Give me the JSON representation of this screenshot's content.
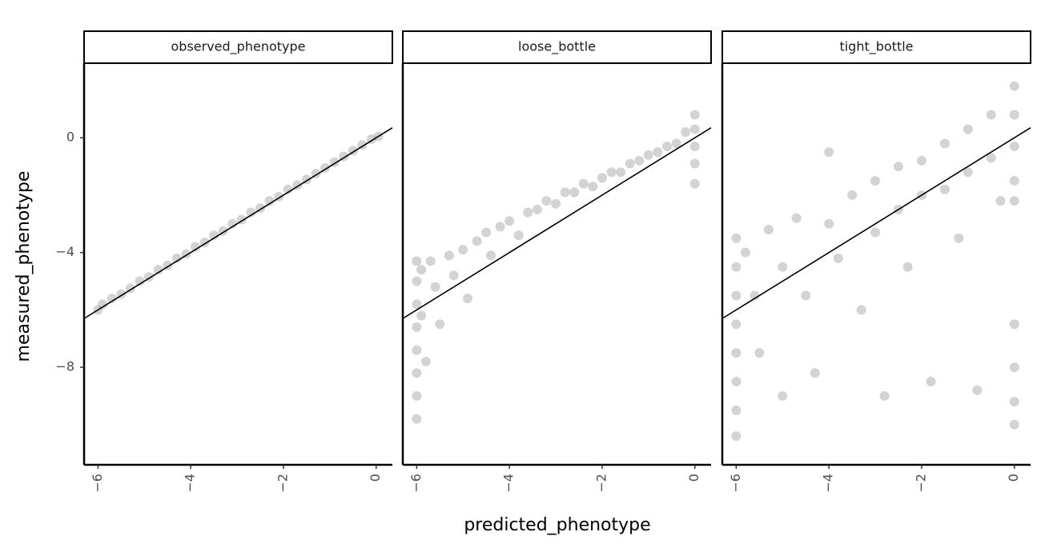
{
  "x_label": "predicted_phenotype",
  "y_label": "measured_phenotype",
  "chart_data": [
    {
      "type": "scatter",
      "title": "observed_phenotype",
      "color": "#808080",
      "abline": {
        "slope": 1,
        "intercept": 0
      },
      "x": [
        -6.0,
        -5.9,
        -5.7,
        -5.5,
        -5.3,
        -5.1,
        -4.9,
        -4.7,
        -4.5,
        -4.3,
        -4.1,
        -3.9,
        -3.7,
        -3.5,
        -3.3,
        -3.1,
        -2.9,
        -2.7,
        -2.5,
        -2.3,
        -2.1,
        -1.9,
        -1.7,
        -1.5,
        -1.3,
        -1.1,
        -0.9,
        -0.7,
        -0.5,
        -0.3,
        -0.1,
        0.05
      ],
      "y": [
        -6.0,
        -5.8,
        -5.6,
        -5.45,
        -5.25,
        -5.0,
        -4.85,
        -4.6,
        -4.45,
        -4.2,
        -4.05,
        -3.8,
        -3.65,
        -3.4,
        -3.25,
        -3.0,
        -2.85,
        -2.6,
        -2.45,
        -2.2,
        -2.05,
        -1.8,
        -1.65,
        -1.45,
        -1.25,
        -1.05,
        -0.85,
        -0.65,
        -0.45,
        -0.25,
        -0.05,
        0.05
      ],
      "xlim": [
        -6.3,
        0.35
      ],
      "ylim": [
        -11.4,
        2.6
      ],
      "xticks": [
        {
          "value": -6,
          "label": "−6"
        },
        {
          "value": -4,
          "label": "−4"
        },
        {
          "value": -2,
          "label": "−2"
        },
        0
      ],
      "yticks": [
        {
          "value": -8,
          "label": "−8"
        },
        {
          "value": -4,
          "label": "−4"
        },
        0
      ]
    },
    {
      "type": "scatter",
      "title": "loose_bottle",
      "color": "#808080",
      "abline": {
        "slope": 1,
        "intercept": 0
      },
      "x": [
        -6,
        -6,
        -6,
        -6,
        -6,
        -6,
        -6,
        -6,
        -5.9,
        -5.9,
        -5.8,
        -5.7,
        -5.6,
        -5.5,
        -5.3,
        -5.2,
        -5,
        -4.9,
        -4.7,
        -4.5,
        -4.4,
        -4.2,
        -4,
        -3.8,
        -3.6,
        -3.4,
        -3.2,
        -3,
        -2.8,
        -2.6,
        -2.4,
        -2.2,
        -2,
        -1.8,
        -1.6,
        -1.4,
        -1.2,
        -1,
        -0.8,
        -0.6,
        -0.4,
        -0.2,
        0,
        0,
        0,
        0,
        0
      ],
      "y": [
        -4.3,
        -5,
        -5.8,
        -6.6,
        -7.4,
        -8.2,
        -9,
        -9.8,
        -4.6,
        -6.2,
        -7.8,
        -4.3,
        -5.2,
        -6.5,
        -4.1,
        -4.8,
        -3.9,
        -5.6,
        -3.6,
        -3.3,
        -4.1,
        -3.1,
        -2.9,
        -3.4,
        -2.6,
        -2.5,
        -2.2,
        -2.3,
        -1.9,
        -1.9,
        -1.6,
        -1.7,
        -1.4,
        -1.2,
        -1.2,
        -0.9,
        -0.8,
        -0.6,
        -0.5,
        -0.3,
        -0.2,
        0.2,
        0.8,
        0.3,
        -0.3,
        -0.9,
        -1.6
      ],
      "xlim": [
        -6.3,
        0.35
      ],
      "ylim": [
        -11.4,
        2.6
      ],
      "xticks": [
        {
          "value": -6,
          "label": "−6"
        },
        {
          "value": -4,
          "label": "−4"
        },
        {
          "value": -2,
          "label": "−2"
        },
        0
      ]
    },
    {
      "type": "scatter",
      "title": "tight_bottle",
      "color": "#808080",
      "abline": {
        "slope": 1,
        "intercept": 0
      },
      "x": [
        -6,
        -6,
        -6,
        -6,
        -6,
        -6,
        -6,
        -6,
        -5.8,
        -5.6,
        -5.5,
        -5.3,
        -5,
        -5,
        -4.7,
        -4.5,
        -4.3,
        -4,
        -4,
        -3.8,
        -3.5,
        -3.3,
        -3,
        -3,
        -2.8,
        -2.5,
        -2.5,
        -2.3,
        -2,
        -2,
        -1.8,
        -1.5,
        -1.5,
        -1.2,
        -1,
        -1,
        -0.8,
        -0.5,
        -0.5,
        -0.3,
        0,
        0,
        0,
        0,
        0,
        0,
        0,
        0,
        0
      ],
      "y": [
        -3.5,
        -4.5,
        -5.5,
        -6.5,
        -7.5,
        -8.5,
        -9.5,
        -10.4,
        -4,
        -5.5,
        -7.5,
        -3.2,
        -4.5,
        -9,
        -2.8,
        -5.5,
        -8.2,
        -0.5,
        -3,
        -4.2,
        -2,
        -6,
        -1.5,
        -3.3,
        -9,
        -1,
        -2.5,
        -4.5,
        -0.8,
        -2,
        -8.5,
        -0.2,
        -1.8,
        -3.5,
        0.3,
        -1.2,
        -8.8,
        0.8,
        -0.7,
        -2.2,
        1.8,
        0.8,
        -0.3,
        -1.5,
        -2.2,
        -6.5,
        -8,
        -9.2,
        -10
      ],
      "xlim": [
        -6.3,
        0.35
      ],
      "ylim": [
        -11.4,
        2.6
      ],
      "xticks": [
        {
          "value": -6,
          "label": "−6"
        },
        {
          "value": -4,
          "label": "−4"
        },
        {
          "value": -2,
          "label": "−2"
        },
        0
      ]
    }
  ]
}
